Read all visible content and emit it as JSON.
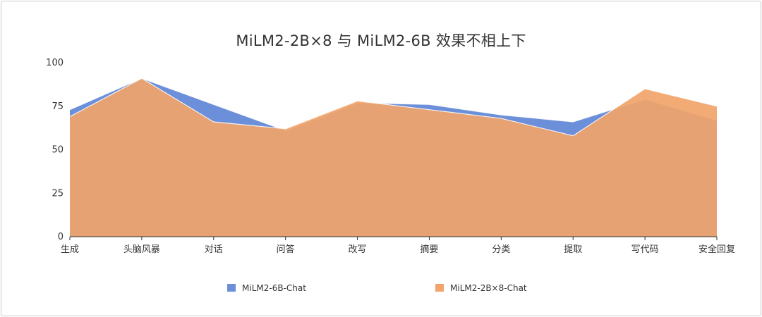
{
  "chart_data": {
    "type": "area",
    "title": "MiLM2-2B×8 与 MiLM2-6B 效果不相上下",
    "categories": [
      "生成",
      "头脑风暴",
      "对话",
      "问答",
      "改写",
      "摘要",
      "分类",
      "提取",
      "写代码",
      "安全回复"
    ],
    "ylim": [
      0,
      100
    ],
    "yticks": [
      0,
      25,
      50,
      75,
      100
    ],
    "grid": false,
    "legend_position": "bottom",
    "series": [
      {
        "name": "MiLM2-6B-Chat",
        "color": "#6b8fd8",
        "values": [
          73,
          91,
          76,
          61,
          77,
          76,
          70,
          66,
          79,
          67
        ]
      },
      {
        "name": "MiLM2-2B×8-Chat",
        "color": "#f2a46a",
        "values": [
          69,
          91,
          66,
          62,
          78,
          73,
          68,
          58,
          85,
          75
        ]
      }
    ]
  }
}
